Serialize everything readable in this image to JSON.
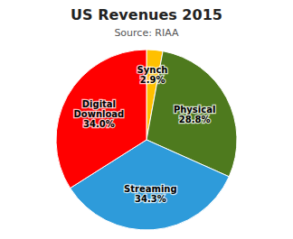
{
  "chart_data": {
    "type": "pie",
    "title": "US Revenues 2015",
    "subtitle": "Source: RIAA",
    "categories": [
      "Synch",
      "Physical",
      "Streaming",
      "Digital\nDownload"
    ],
    "values": [
      2.9,
      28.8,
      34.3,
      34.0
    ],
    "value_labels": [
      "2.9%",
      "28.8%",
      "34.3%",
      "34.0%"
    ],
    "colors": [
      "#FFC000",
      "#4E7A1E",
      "#2E9BDA",
      "#FF0000"
    ],
    "data_labels": true
  }
}
